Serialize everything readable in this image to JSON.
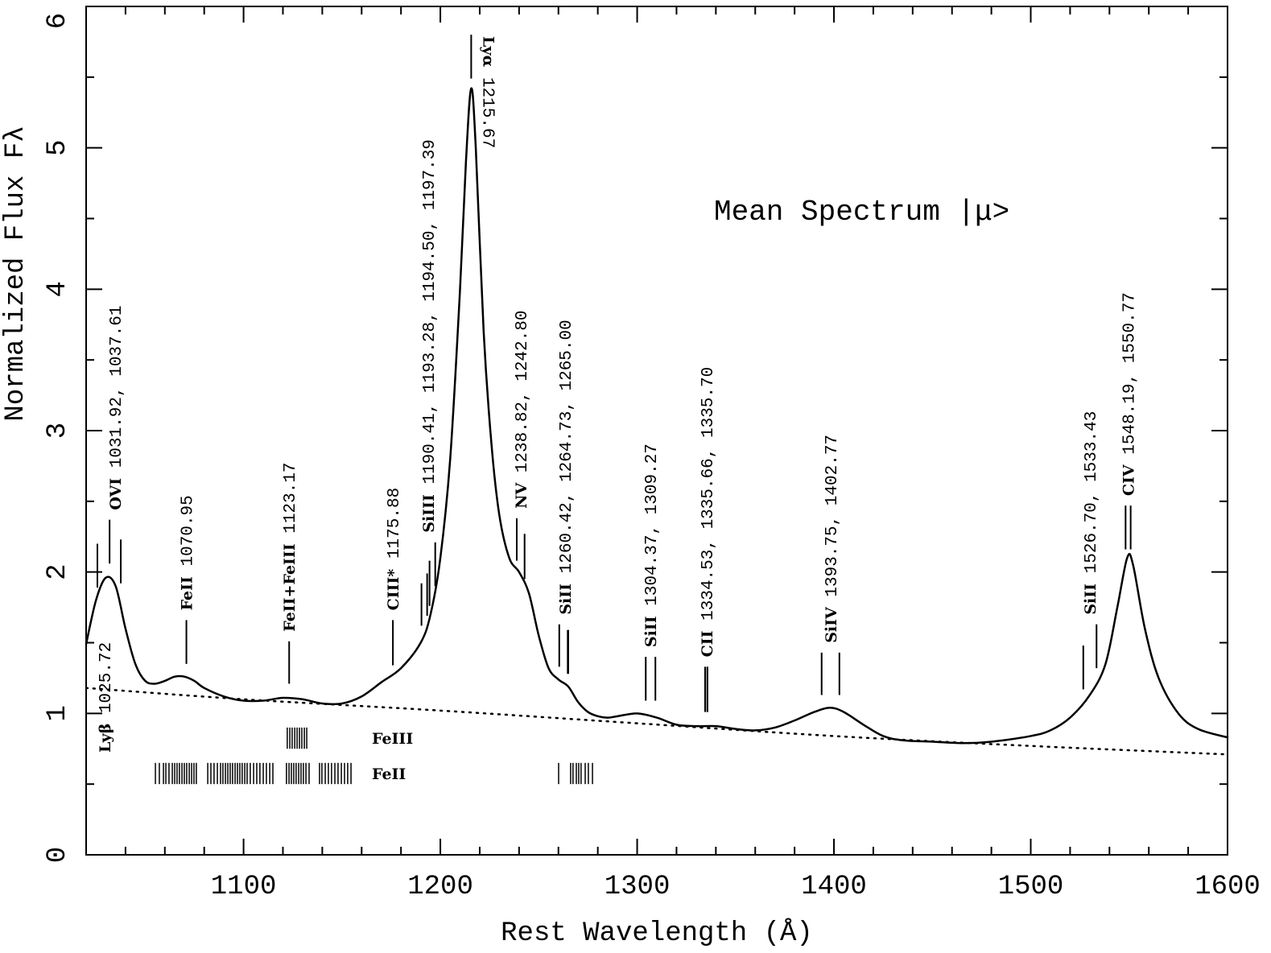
{
  "chart_data": {
    "type": "line",
    "title": "Mean Spectrum  |μ>",
    "x_label": "Rest Wavelength (Å)",
    "y_label": "Normalized Flux Fλ",
    "xlim": [
      1020,
      1600
    ],
    "ylim": [
      0,
      6
    ],
    "xticks": [
      1100,
      1200,
      1300,
      1400,
      1500,
      1600
    ],
    "yticks": [
      0,
      1,
      2,
      3,
      4,
      5,
      6
    ],
    "xminorticks": [
      1020,
      1040,
      1060,
      1080,
      1120,
      1140,
      1160,
      1180,
      1220,
      1240,
      1260,
      1280,
      1320,
      1340,
      1360,
      1380,
      1420,
      1440,
      1460,
      1480,
      1520,
      1540,
      1560,
      1580
    ],
    "yminorticks": [
      0.5,
      1.5,
      2.5,
      3.5,
      4.5,
      5.5
    ],
    "series": [
      {
        "color": "#000000",
        "style": "solid",
        "x": [
          1020,
          1025,
          1030,
          1035,
          1040,
          1045,
          1050,
          1055,
          1060,
          1065,
          1070,
          1075,
          1080,
          1090,
          1100,
          1110,
          1120,
          1130,
          1140,
          1150,
          1160,
          1170,
          1180,
          1190,
          1195,
          1200,
          1205,
          1210,
          1213,
          1215.67,
          1218,
          1222,
          1226,
          1230,
          1235,
          1240,
          1245,
          1250,
          1255,
          1260,
          1265,
          1270,
          1275,
          1280,
          1285,
          1290,
          1300,
          1310,
          1320,
          1330,
          1340,
          1350,
          1360,
          1370,
          1380,
          1390,
          1398,
          1405,
          1415,
          1425,
          1435,
          1450,
          1465,
          1480,
          1500,
          1510,
          1520,
          1530,
          1538,
          1544,
          1549,
          1552,
          1558,
          1565,
          1575,
          1585,
          1600
        ],
        "values": [
          1.49,
          1.8,
          1.96,
          1.9,
          1.6,
          1.35,
          1.23,
          1.21,
          1.23,
          1.26,
          1.26,
          1.23,
          1.18,
          1.12,
          1.09,
          1.09,
          1.11,
          1.1,
          1.07,
          1.07,
          1.12,
          1.22,
          1.32,
          1.5,
          1.7,
          2.1,
          2.8,
          4.0,
          4.9,
          5.42,
          5.0,
          3.7,
          2.9,
          2.4,
          2.1,
          2.0,
          1.85,
          1.55,
          1.32,
          1.24,
          1.19,
          1.08,
          1.01,
          0.98,
          0.97,
          0.98,
          1.0,
          0.97,
          0.92,
          0.91,
          0.91,
          0.89,
          0.88,
          0.9,
          0.95,
          1.01,
          1.04,
          1.01,
          0.92,
          0.84,
          0.81,
          0.8,
          0.79,
          0.8,
          0.84,
          0.88,
          0.97,
          1.13,
          1.35,
          1.75,
          2.1,
          2.05,
          1.6,
          1.25,
          1.0,
          0.89,
          0.83
        ]
      },
      {
        "color": "#000000",
        "style": "dotted",
        "x": [
          1020,
          1100,
          1200,
          1300,
          1400,
          1500,
          1600
        ],
        "values": [
          1.18,
          1.1,
          1.02,
          0.93,
          0.84,
          0.77,
          0.71
        ]
      }
    ],
    "annotations": [
      {
        "ion": "Lyβ",
        "text": "1025.72",
        "lines": [
          {
            "x": 1025.72,
            "y": [
              1.89,
              2.2
            ]
          }
        ]
      },
      {
        "ion": "OVI",
        "text": "1031.92, 1037.61",
        "lines": [
          {
            "x": 1031.92,
            "y": [
              2.06,
              2.37
            ]
          },
          {
            "x": 1037.61,
            "y": [
              1.92,
              2.23
            ]
          }
        ]
      },
      {
        "ion": "FeII",
        "text": "1070.95",
        "lines": [
          {
            "x": 1070.95,
            "y": [
              1.35,
              1.66
            ]
          }
        ]
      },
      {
        "ion": "FeII+FeIII",
        "text": "1123.17",
        "lines": [
          {
            "x": 1123.17,
            "y": [
              1.21,
              1.51
            ]
          }
        ]
      },
      {
        "ion": "CIII*",
        "text": "1175.88",
        "lines": [
          {
            "x": 1175.88,
            "y": [
              1.34,
              1.66
            ]
          }
        ]
      },
      {
        "ion": "SiIII",
        "text": "1190.41, 1193.28, 1194.50, 1197.39",
        "lines": [
          {
            "x": 1190.41,
            "y": [
              1.62,
              1.92
            ]
          },
          {
            "x": 1193.28,
            "y": [
              1.69,
              1.99
            ]
          },
          {
            "x": 1194.5,
            "y": [
              1.76,
              2.08
            ]
          },
          {
            "x": 1197.39,
            "y": [
              1.9,
              2.21
            ]
          }
        ]
      },
      {
        "ion": "Lyα",
        "text": "1215.67",
        "lines": [
          {
            "x": 1215.67,
            "y": [
              5.49,
              5.8
            ]
          }
        ]
      },
      {
        "ion": "NV",
        "text": "1238.82, 1242.80",
        "lines": [
          {
            "x": 1238.82,
            "y": [
              2.08,
              2.38
            ]
          },
          {
            "x": 1242.8,
            "y": [
              1.95,
              2.27
            ]
          }
        ]
      },
      {
        "ion": "SiII",
        "text": "1260.42, 1264.73, 1265.00",
        "lines": [
          {
            "x": 1260.42,
            "y": [
              1.33,
              1.63
            ]
          },
          {
            "x": 1264.73,
            "y": [
              1.28,
              1.59
            ]
          },
          {
            "x": 1265.0,
            "y": [
              1.28,
              1.59
            ]
          }
        ]
      },
      {
        "ion": "SiII",
        "text": "1304.37, 1309.27",
        "lines": [
          {
            "x": 1304.37,
            "y": [
              1.09,
              1.4
            ]
          },
          {
            "x": 1309.27,
            "y": [
              1.09,
              1.4
            ]
          }
        ]
      },
      {
        "ion": "CII",
        "text": "1334.53, 1335.66, 1335.70",
        "lines": [
          {
            "x": 1334.53,
            "y": [
              1.01,
              1.33
            ]
          },
          {
            "x": 1335.66,
            "y": [
              1.01,
              1.33
            ]
          },
          {
            "x": 1335.7,
            "y": [
              1.01,
              1.33
            ]
          }
        ]
      },
      {
        "ion": "SiIV",
        "text": "1393.75, 1402.77",
        "lines": [
          {
            "x": 1393.75,
            "y": [
              1.13,
              1.43
            ]
          },
          {
            "x": 1402.77,
            "y": [
              1.13,
              1.43
            ]
          }
        ]
      },
      {
        "ion": "SiII",
        "text": "1526.70, 1533.43",
        "lines": [
          {
            "x": 1526.7,
            "y": [
              1.17,
              1.48
            ]
          },
          {
            "x": 1533.43,
            "y": [
              1.32,
              1.63
            ]
          }
        ]
      },
      {
        "ion": "CIV",
        "text": "1548.19, 1550.77",
        "lines": [
          {
            "x": 1548.19,
            "y": [
              2.16,
              2.47
            ]
          },
          {
            "x": 1550.77,
            "y": [
              2.16,
              2.47
            ]
          }
        ]
      }
    ],
    "fe_bands": [
      {
        "name": "FeIII",
        "y": [
          0.75,
          0.9
        ],
        "lines": [
          1122.2,
          1123.5,
          1124.7,
          1126.0,
          1127.2,
          1128.4,
          1129.6,
          1130.9,
          1132.1
        ]
      },
      {
        "name": "FeII",
        "y": [
          0.5,
          0.65
        ],
        "lines": [
          1055.2,
          1057.2,
          1059.3,
          1060.5,
          1062.1,
          1063.8,
          1065.0,
          1066.2,
          1067.4,
          1068.7,
          1069.9,
          1071.1,
          1072.4,
          1073.6,
          1074.8,
          1076.0,
          1081.8,
          1083.4,
          1085.0,
          1086.7,
          1088.3,
          1089.5,
          1090.8,
          1092.0,
          1093.2,
          1094.4,
          1095.7,
          1096.9,
          1098.1,
          1099.3,
          1100.6,
          1101.8,
          1103.4,
          1105.1,
          1106.7,
          1108.3,
          1110.0,
          1111.6,
          1113.3,
          1114.9,
          1121.8,
          1123.1,
          1124.3,
          1125.5,
          1126.7,
          1128.0,
          1129.2,
          1130.4,
          1131.7,
          1133.3,
          1138.6,
          1139.8,
          1141.5,
          1143.1,
          1144.7,
          1146.4,
          1148.0,
          1149.7,
          1151.3,
          1152.9,
          1154.6,
          1260.1,
          1266.2,
          1267.4,
          1269.1,
          1270.3,
          1271.5,
          1273.6,
          1275.2,
          1277.3
        ]
      }
    ]
  }
}
